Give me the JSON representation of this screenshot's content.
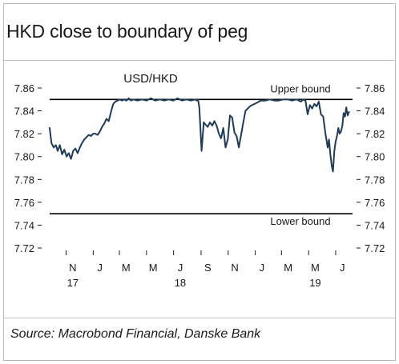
{
  "chart_data": {
    "type": "line",
    "title": "HKD close to boundary of peg",
    "series": [
      {
        "name": "USD/HKD",
        "color": "#1f3b57",
        "x": [
          "2017-09-25",
          "2017-09-29",
          "2017-10-04",
          "2017-10-09",
          "2017-10-13",
          "2017-10-18",
          "2017-10-23",
          "2017-10-28",
          "2017-11-02",
          "2017-11-07",
          "2017-11-12",
          "2017-11-17",
          "2017-11-22",
          "2017-11-27",
          "2017-12-02",
          "2017-12-07",
          "2017-12-12",
          "2017-12-17",
          "2017-12-22",
          "2017-12-27",
          "2018-01-01",
          "2018-01-06",
          "2018-01-11",
          "2018-01-16",
          "2018-01-21",
          "2018-01-26",
          "2018-01-31",
          "2018-02-05",
          "2018-02-10",
          "2018-02-15",
          "2018-02-20",
          "2018-02-25",
          "2018-03-02",
          "2018-03-07",
          "2018-03-12",
          "2018-03-17",
          "2018-03-22",
          "2018-03-27",
          "2018-04-01",
          "2018-04-11",
          "2018-04-21",
          "2018-05-01",
          "2018-05-11",
          "2018-05-21",
          "2018-05-31",
          "2018-06-10",
          "2018-06-20",
          "2018-06-30",
          "2018-07-10",
          "2018-07-20",
          "2018-07-30",
          "2018-08-09",
          "2018-08-19",
          "2018-08-22",
          "2018-08-25",
          "2018-08-28",
          "2018-09-02",
          "2018-09-07",
          "2018-09-11",
          "2018-09-16",
          "2018-09-21",
          "2018-09-26",
          "2018-10-01",
          "2018-10-06",
          "2018-10-11",
          "2018-10-16",
          "2018-10-21",
          "2018-10-26",
          "2018-10-31",
          "2018-11-05",
          "2018-11-10",
          "2018-11-15",
          "2018-11-20",
          "2018-11-25",
          "2018-11-30",
          "2018-12-05",
          "2018-12-10",
          "2018-12-15",
          "2018-12-20",
          "2018-12-25",
          "2018-12-30",
          "2019-01-04",
          "2019-01-09",
          "2019-01-14",
          "2019-01-24",
          "2019-02-03",
          "2019-02-13",
          "2019-02-23",
          "2019-03-05",
          "2019-03-15",
          "2019-03-25",
          "2019-04-04",
          "2019-04-14",
          "2019-04-19",
          "2019-04-24",
          "2019-04-29",
          "2019-05-04",
          "2019-05-09",
          "2019-05-14",
          "2019-05-19",
          "2019-05-24",
          "2019-05-29",
          "2019-06-03",
          "2019-06-08",
          "2019-06-13",
          "2019-06-16",
          "2019-06-19",
          "2019-06-22",
          "2019-06-25",
          "2019-06-28",
          "2019-07-01",
          "2019-07-04",
          "2019-07-07",
          "2019-07-10",
          "2019-07-13",
          "2019-07-16",
          "2019-07-19",
          "2019-07-22",
          "2019-07-25",
          "2019-07-28",
          "2019-07-31"
        ],
        "y": [
          7.825,
          7.812,
          7.808,
          7.81,
          7.805,
          7.81,
          7.802,
          7.806,
          7.8,
          7.803,
          7.798,
          7.805,
          7.807,
          7.803,
          7.808,
          7.812,
          7.815,
          7.817,
          7.819,
          7.818,
          7.82,
          7.82,
          7.819,
          7.822,
          7.826,
          7.829,
          7.833,
          7.831,
          7.839,
          7.846,
          7.848,
          7.849,
          7.85,
          7.849,
          7.85,
          7.849,
          7.851,
          7.849,
          7.85,
          7.849,
          7.85,
          7.849,
          7.851,
          7.849,
          7.85,
          7.849,
          7.85,
          7.849,
          7.851,
          7.849,
          7.85,
          7.849,
          7.85,
          7.849,
          7.85,
          7.843,
          7.805,
          7.83,
          7.828,
          7.826,
          7.83,
          7.827,
          7.831,
          7.827,
          7.82,
          7.816,
          7.825,
          7.808,
          7.815,
          7.836,
          7.834,
          7.821,
          7.818,
          7.808,
          7.819,
          7.83,
          7.84,
          7.842,
          7.844,
          7.845,
          7.846,
          7.847,
          7.848,
          7.849,
          7.849,
          7.85,
          7.849,
          7.849,
          7.85,
          7.85,
          7.849,
          7.85,
          7.848,
          7.85,
          7.849,
          7.837,
          7.845,
          7.842,
          7.846,
          7.844,
          7.848,
          7.837,
          7.835,
          7.82,
          7.808,
          7.815,
          7.802,
          7.792,
          7.787,
          7.805,
          7.813,
          7.818,
          7.825,
          7.82,
          7.822,
          7.827,
          7.838,
          7.835,
          7.843,
          7.836,
          7.839
        ]
      }
    ],
    "ylim": [
      7.72,
      7.86
    ],
    "y_ticks": [
      7.72,
      7.74,
      7.76,
      7.78,
      7.8,
      7.82,
      7.84,
      7.86
    ],
    "y_tick_labels": [
      "7.72",
      "7.74",
      "7.76",
      "7.78",
      "7.80",
      "7.82",
      "7.84",
      "7.86"
    ],
    "x_month_ticks": [
      {
        "date": "2017-11-01",
        "label": "N",
        "year": "17"
      },
      {
        "date": "2018-01-01",
        "label": "J",
        "year": ""
      },
      {
        "date": "2018-03-01",
        "label": "M",
        "year": ""
      },
      {
        "date": "2018-05-01",
        "label": "M",
        "year": ""
      },
      {
        "date": "2018-07-01",
        "label": "J",
        "year": "18"
      },
      {
        "date": "2018-09-01",
        "label": "S",
        "year": ""
      },
      {
        "date": "2018-11-01",
        "label": "N",
        "year": ""
      },
      {
        "date": "2019-01-01",
        "label": "J",
        "year": ""
      },
      {
        "date": "2019-03-01",
        "label": "M",
        "year": ""
      },
      {
        "date": "2019-05-01",
        "label": "M",
        "year": "19"
      },
      {
        "date": "2019-07-01",
        "label": "J",
        "year": ""
      }
    ],
    "xlim": [
      "2017-09-25",
      "2019-08-08"
    ],
    "reference_lines": [
      {
        "value": 7.85,
        "label": "Upper bound"
      },
      {
        "value": 7.75,
        "label": "Lower bound"
      }
    ],
    "grid": false
  },
  "source": "Source: Macrobond Financial, Danske Bank"
}
